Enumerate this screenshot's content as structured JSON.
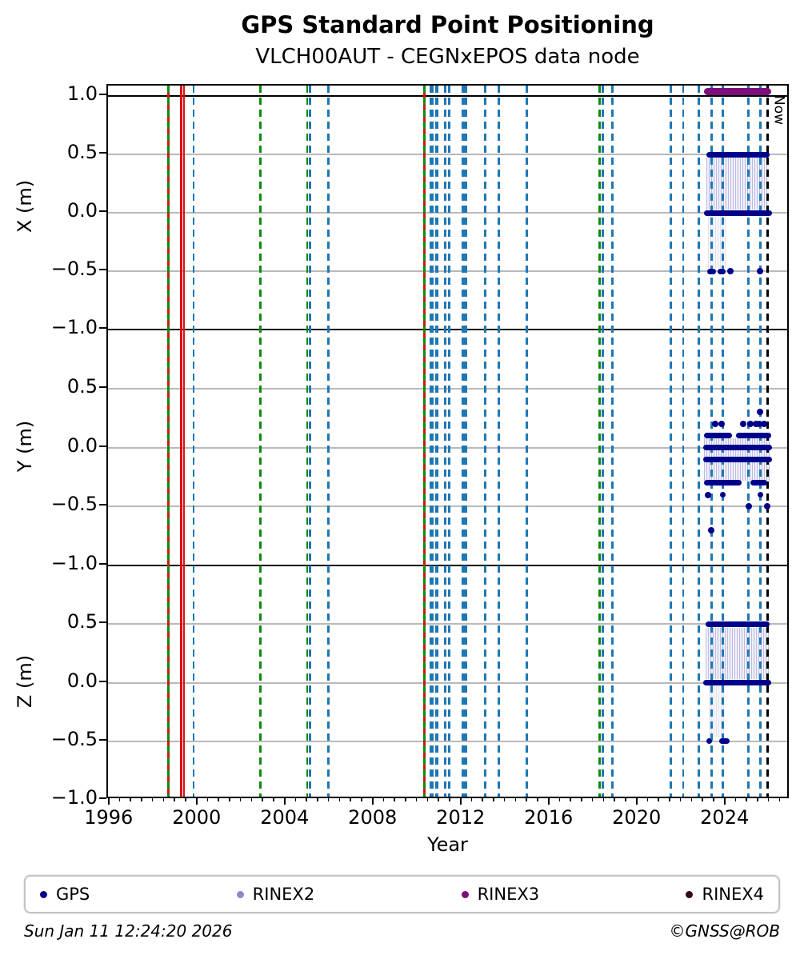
{
  "chart_data": {
    "type": "scatter",
    "title": "GPS Standard Point Positioning",
    "subtitle": "VLCH00AUT - CEGNxEPOS data node",
    "xlabel": "Year",
    "now_label": "Now",
    "footer": {
      "timestamp": "Sun Jan 11 12:24:20 2026",
      "copyright": "©GNSS@ROB"
    },
    "colors": {
      "gps": "#00008b",
      "rinex2": "#8a8acb",
      "rinex3": "#7b0f7b",
      "rinex4": "#320a20",
      "vline_blue": "#1f77b4",
      "vline_green": "#0e8b0e",
      "vline_red": "#dc1010",
      "vline_black": "#000000",
      "grid": "#b9b9b9"
    },
    "x_axis": {
      "min": 1995.9,
      "max": 2026.92,
      "major_ticks": [
        1996,
        2000,
        2004,
        2008,
        2012,
        2016,
        2020,
        2024
      ],
      "minor_start": 1996,
      "minor_end": 2026.5,
      "minor_step": 0.5
    },
    "subplots": [
      {
        "ylabel": "X (m)",
        "ymin": -1.0,
        "ymax": 1.09,
        "yticks": [
          {
            "v": 1.0,
            "label": "1.0"
          },
          {
            "v": 0.5,
            "label": "0.5"
          },
          {
            "v": 0.0,
            "label": "0.0"
          },
          {
            "v": -0.5,
            "label": "−0.5"
          },
          {
            "v": -1.0,
            "label": "−1.0"
          }
        ],
        "grid": [
          0.5,
          0.0,
          -0.5
        ],
        "black_lines": [
          1.0
        ],
        "gps_runs": [
          {
            "x0": 2023.09,
            "x1": 2025.97,
            "y": 0.5
          },
          {
            "x0": 2023.0,
            "x1": 2026.07,
            "y": 0.0
          },
          {
            "x0": 2023.15,
            "x1": 2023.55,
            "y": -0.5
          },
          {
            "x0": 2023.61,
            "x1": 2023.97,
            "y": -0.5
          }
        ],
        "gps_dots": [
          {
            "x": 2024.18,
            "y": -0.5
          },
          {
            "x": 2025.55,
            "y": -0.5
          }
        ],
        "rinex3_runs": [
          {
            "x0": 2023.0,
            "x1": 2026.05,
            "y": 1.04
          }
        ],
        "rinex2_rects": [
          {
            "x0": 2023.1,
            "x1": 2025.95,
            "y0": 0.03,
            "y1": 0.47,
            "alpha": 1
          },
          {
            "x0": 2023.16,
            "x1": 2023.96,
            "y0": -0.47,
            "y1": -0.02,
            "alpha": 0.45
          }
        ]
      },
      {
        "ylabel": "Y (m)",
        "ymin": -1.0,
        "ymax": 1.0,
        "yticks": [
          {
            "v": 0.5,
            "label": "0.5"
          },
          {
            "v": 0.0,
            "label": "0.0"
          },
          {
            "v": -0.5,
            "label": "−0.5"
          },
          {
            "v": -1.0,
            "label": "−1.0"
          }
        ],
        "grid": [
          0.5,
          0.0,
          -0.5
        ],
        "black_lines": [],
        "gps_runs": [
          {
            "x0": 2023.0,
            "x1": 2024.27,
            "y": 0.1
          },
          {
            "x0": 2024.45,
            "x1": 2026.03,
            "y": 0.1
          },
          {
            "x0": 2022.97,
            "x1": 2026.07,
            "y": 0.0
          },
          {
            "x0": 2022.95,
            "x1": 2026.09,
            "y": -0.1
          },
          {
            "x0": 2023.0,
            "x1": 2024.7,
            "y": -0.3
          },
          {
            "x0": 2025.1,
            "x1": 2025.85,
            "y": -0.3
          },
          {
            "x0": 2023.72,
            "x1": 2023.9,
            "y": -0.4
          },
          {
            "x0": 2025.43,
            "x1": 2025.67,
            "y": -0.4
          }
        ],
        "gps_dots": [
          {
            "x": 2025.55,
            "y": 0.3
          },
          {
            "x": 2023.49,
            "y": 0.2
          },
          {
            "x": 2023.79,
            "y": 0.2
          },
          {
            "x": 2024.76,
            "y": 0.2
          },
          {
            "x": 2025.1,
            "y": 0.2
          },
          {
            "x": 2025.37,
            "y": 0.2
          },
          {
            "x": 2025.51,
            "y": 0.2
          },
          {
            "x": 2025.71,
            "y": 0.2
          },
          {
            "x": 2023.18,
            "y": -0.4
          },
          {
            "x": 2025.03,
            "y": -0.5
          },
          {
            "x": 2025.85,
            "y": -0.5
          },
          {
            "x": 2023.33,
            "y": -0.7
          }
        ],
        "rinex3_runs": [],
        "rinex2_rects": [
          {
            "x0": 2023.0,
            "x1": 2026.0,
            "y0": -0.28,
            "y1": 0.08,
            "alpha": 1
          }
        ]
      },
      {
        "ylabel": "Z (m)",
        "ymin": -1.0,
        "ymax": 1.0,
        "yticks": [
          {
            "v": 0.5,
            "label": "0.5"
          },
          {
            "v": 0.0,
            "label": "0.0"
          },
          {
            "v": -0.5,
            "label": "−0.5"
          },
          {
            "v": -1.0,
            "label": "−1.0"
          }
        ],
        "grid": [
          0.5,
          0.0,
          -0.5
        ],
        "black_lines": [],
        "gps_runs": [
          {
            "x0": 2023.06,
            "x1": 2025.97,
            "y": 0.5
          },
          {
            "x0": 2022.97,
            "x1": 2026.03,
            "y": 0.0
          },
          {
            "x0": 2023.09,
            "x1": 2023.31,
            "y": -0.5
          },
          {
            "x0": 2023.67,
            "x1": 2024.15,
            "y": -0.5
          }
        ],
        "gps_dots": [],
        "rinex3_runs": [],
        "rinex2_rects": [
          {
            "x0": 2023.06,
            "x1": 2025.95,
            "y0": 0.03,
            "y1": 0.47,
            "alpha": 1
          },
          {
            "x0": 2023.2,
            "x1": 2023.95,
            "y0": -0.47,
            "y1": -0.02,
            "alpha": 0.45
          }
        ]
      }
    ],
    "vlines": [
      {
        "year": 1998.64,
        "color": "red",
        "style": "solid",
        "w": 3
      },
      {
        "year": 1998.64,
        "color": "green",
        "style": "dashed",
        "w": 3
      },
      {
        "year": 1999.23,
        "color": "red",
        "style": "solid",
        "w": 2.5
      },
      {
        "year": 1999.36,
        "color": "red",
        "style": "solid",
        "w": 2.5
      },
      {
        "year": 1999.79,
        "color": "blue",
        "style": "dashed",
        "w": 2.5
      },
      {
        "year": 2002.82,
        "color": "green",
        "style": "dashed",
        "w": 2.5
      },
      {
        "year": 2004.96,
        "color": "green",
        "style": "dashed",
        "w": 2.5
      },
      {
        "year": 2005.08,
        "color": "blue",
        "style": "dashed",
        "w": 2.5
      },
      {
        "year": 2005.91,
        "color": "blue",
        "style": "dashed",
        "w": 2.5
      },
      {
        "year": 2010.3,
        "color": "red",
        "style": "solid",
        "w": 3
      },
      {
        "year": 2010.3,
        "color": "green",
        "style": "dashed",
        "w": 3
      },
      {
        "year": 2010.62,
        "color": "blue",
        "style": "dashed",
        "w": 5
      },
      {
        "year": 2010.85,
        "color": "blue",
        "style": "dashed",
        "w": 4
      },
      {
        "year": 2011.21,
        "color": "blue",
        "style": "dashed",
        "w": 3
      },
      {
        "year": 2011.41,
        "color": "blue",
        "style": "dashed",
        "w": 3
      },
      {
        "year": 2012.03,
        "color": "blue",
        "style": "dashed",
        "w": 4
      },
      {
        "year": 2012.17,
        "color": "blue",
        "style": "dashed",
        "w": 4
      },
      {
        "year": 2013.05,
        "color": "blue",
        "style": "dashed",
        "w": 3
      },
      {
        "year": 2013.67,
        "color": "blue",
        "style": "dashed",
        "w": 3
      },
      {
        "year": 2014.94,
        "color": "blue",
        "style": "dashed",
        "w": 3
      },
      {
        "year": 2018.24,
        "color": "green",
        "style": "dashed",
        "w": 2.5
      },
      {
        "year": 2018.4,
        "color": "blue",
        "style": "dashed",
        "w": 2.5
      },
      {
        "year": 2018.82,
        "color": "blue",
        "style": "dashed",
        "w": 2.5
      },
      {
        "year": 2021.49,
        "color": "blue",
        "style": "dashed",
        "w": 2.5
      },
      {
        "year": 2022.04,
        "color": "blue",
        "style": "dashed",
        "w": 2.5
      },
      {
        "year": 2022.75,
        "color": "blue",
        "style": "dashed",
        "w": 3
      },
      {
        "year": 2023.32,
        "color": "blue",
        "style": "dashed",
        "w": 3
      },
      {
        "year": 2023.85,
        "color": "blue",
        "style": "dashed",
        "w": 3
      },
      {
        "year": 2025.01,
        "color": "blue",
        "style": "dashed",
        "w": 3
      },
      {
        "year": 2025.55,
        "color": "blue",
        "style": "dashed",
        "w": 3
      },
      {
        "year": 2025.89,
        "color": "black",
        "style": "dashed",
        "w": 2.5,
        "label": "Now"
      }
    ],
    "legend": [
      {
        "label": "GPS",
        "color": "gps"
      },
      {
        "label": "RINEX2",
        "color": "rinex2"
      },
      {
        "label": "RINEX3",
        "color": "rinex3"
      },
      {
        "label": "RINEX4",
        "color": "rinex4"
      }
    ]
  }
}
